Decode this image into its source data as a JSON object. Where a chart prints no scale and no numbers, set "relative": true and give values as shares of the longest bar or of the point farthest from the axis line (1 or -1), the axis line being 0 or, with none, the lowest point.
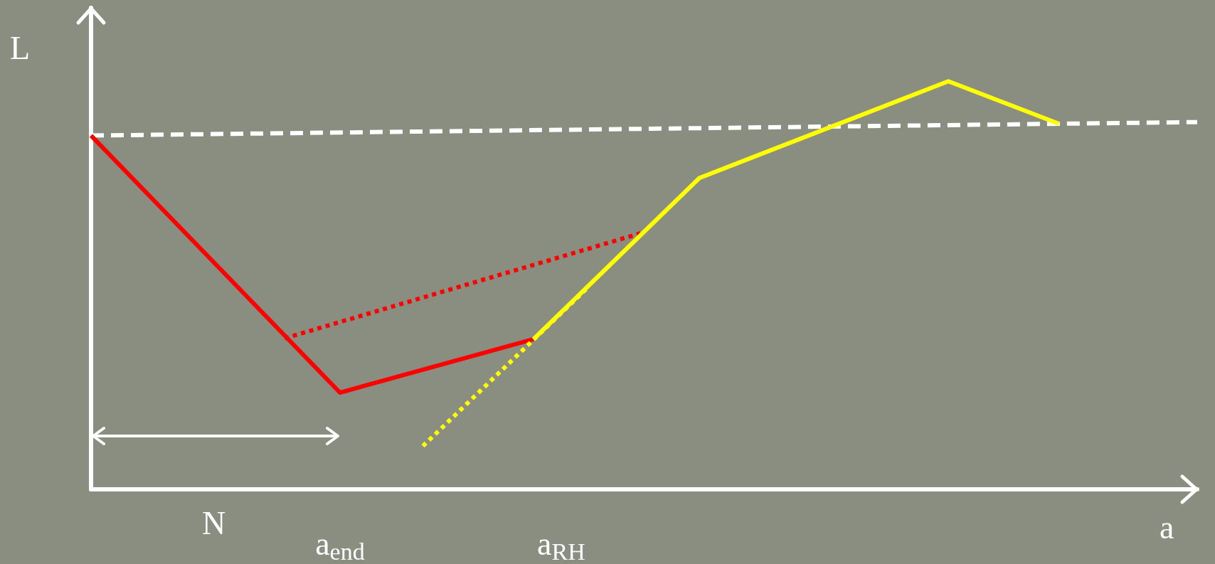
{
  "chart_data": {
    "type": "line",
    "relative": true,
    "xlabel": "a",
    "ylabel": "L",
    "annotations": [
      "N"
    ],
    "categories": [
      null,
      null,
      null,
      null,
      null,
      null,
      null,
      null,
      null,
      "a$_{end}$",
      null,
      null,
      null,
      null,
      null,
      null,
      null,
      "a$_{RH}$",
      null,
      null,
      null,
      null,
      null,
      null,
      null,
      null,
      null,
      null,
      null,
      null,
      null,
      null,
      null,
      null,
      null,
      null,
      null,
      null,
      null,
      null,
      null
    ],
    "marker": "none",
    "grid": false,
    "series": [
      {
        "color": "#ffffff",
        "line_style": "dashed",
        "values": [
          0.867,
          null,
          null,
          null,
          null,
          null,
          null,
          null,
          null,
          null,
          null,
          null,
          null,
          null,
          null,
          null,
          null,
          null,
          null,
          null,
          null,
          null,
          null,
          null,
          null,
          null,
          null,
          null,
          null,
          null,
          null,
          null,
          null,
          null,
          null,
          null,
          null,
          null,
          null,
          null,
          0.9
        ]
      },
      {
        "color": "#ff0000",
        "line_style": "solid",
        "values": [
          0.867,
          null,
          null,
          null,
          null,
          null,
          null,
          null,
          null,
          0.237,
          null,
          null,
          null,
          null,
          null,
          null,
          0.368,
          null,
          null,
          null,
          null,
          null,
          null,
          null,
          null,
          null,
          null,
          null,
          null,
          null,
          null,
          null,
          null,
          null,
          null,
          null,
          null,
          null,
          null,
          null,
          null
        ]
      },
      {
        "color": "#ff0000",
        "line_style": "dotted",
        "values": [
          null,
          null,
          null,
          null,
          null,
          null,
          null,
          0.37,
          null,
          null,
          null,
          null,
          null,
          null,
          null,
          null,
          null,
          null,
          null,
          null,
          0.63,
          null,
          null,
          null,
          null,
          null,
          null,
          null,
          null,
          null,
          null,
          null,
          null,
          null,
          null,
          null,
          null,
          null,
          null,
          null,
          null
        ]
      },
      {
        "color": "#ffff00",
        "line_style": "solid",
        "values": [
          null,
          null,
          null,
          null,
          null,
          null,
          null,
          null,
          null,
          null,
          null,
          null,
          null,
          null,
          null,
          null,
          0.368,
          null,
          null,
          null,
          null,
          null,
          0.763,
          null,
          null,
          null,
          null,
          null,
          null,
          null,
          null,
          1.0,
          null,
          null,
          null,
          0.896,
          null,
          null,
          null,
          null,
          null
        ]
      },
      {
        "color": "#ffff00",
        "line_style": "dotted",
        "values": [
          null,
          null,
          null,
          null,
          null,
          null,
          null,
          null,
          null,
          null,
          null,
          null,
          0.106,
          null,
          null,
          null,
          null,
          null,
          0.497,
          null,
          null,
          null,
          null,
          null,
          null,
          null,
          null,
          null,
          null,
          null,
          null,
          null,
          null,
          null,
          null,
          null,
          null,
          null,
          null,
          null,
          null
        ]
      }
    ]
  }
}
